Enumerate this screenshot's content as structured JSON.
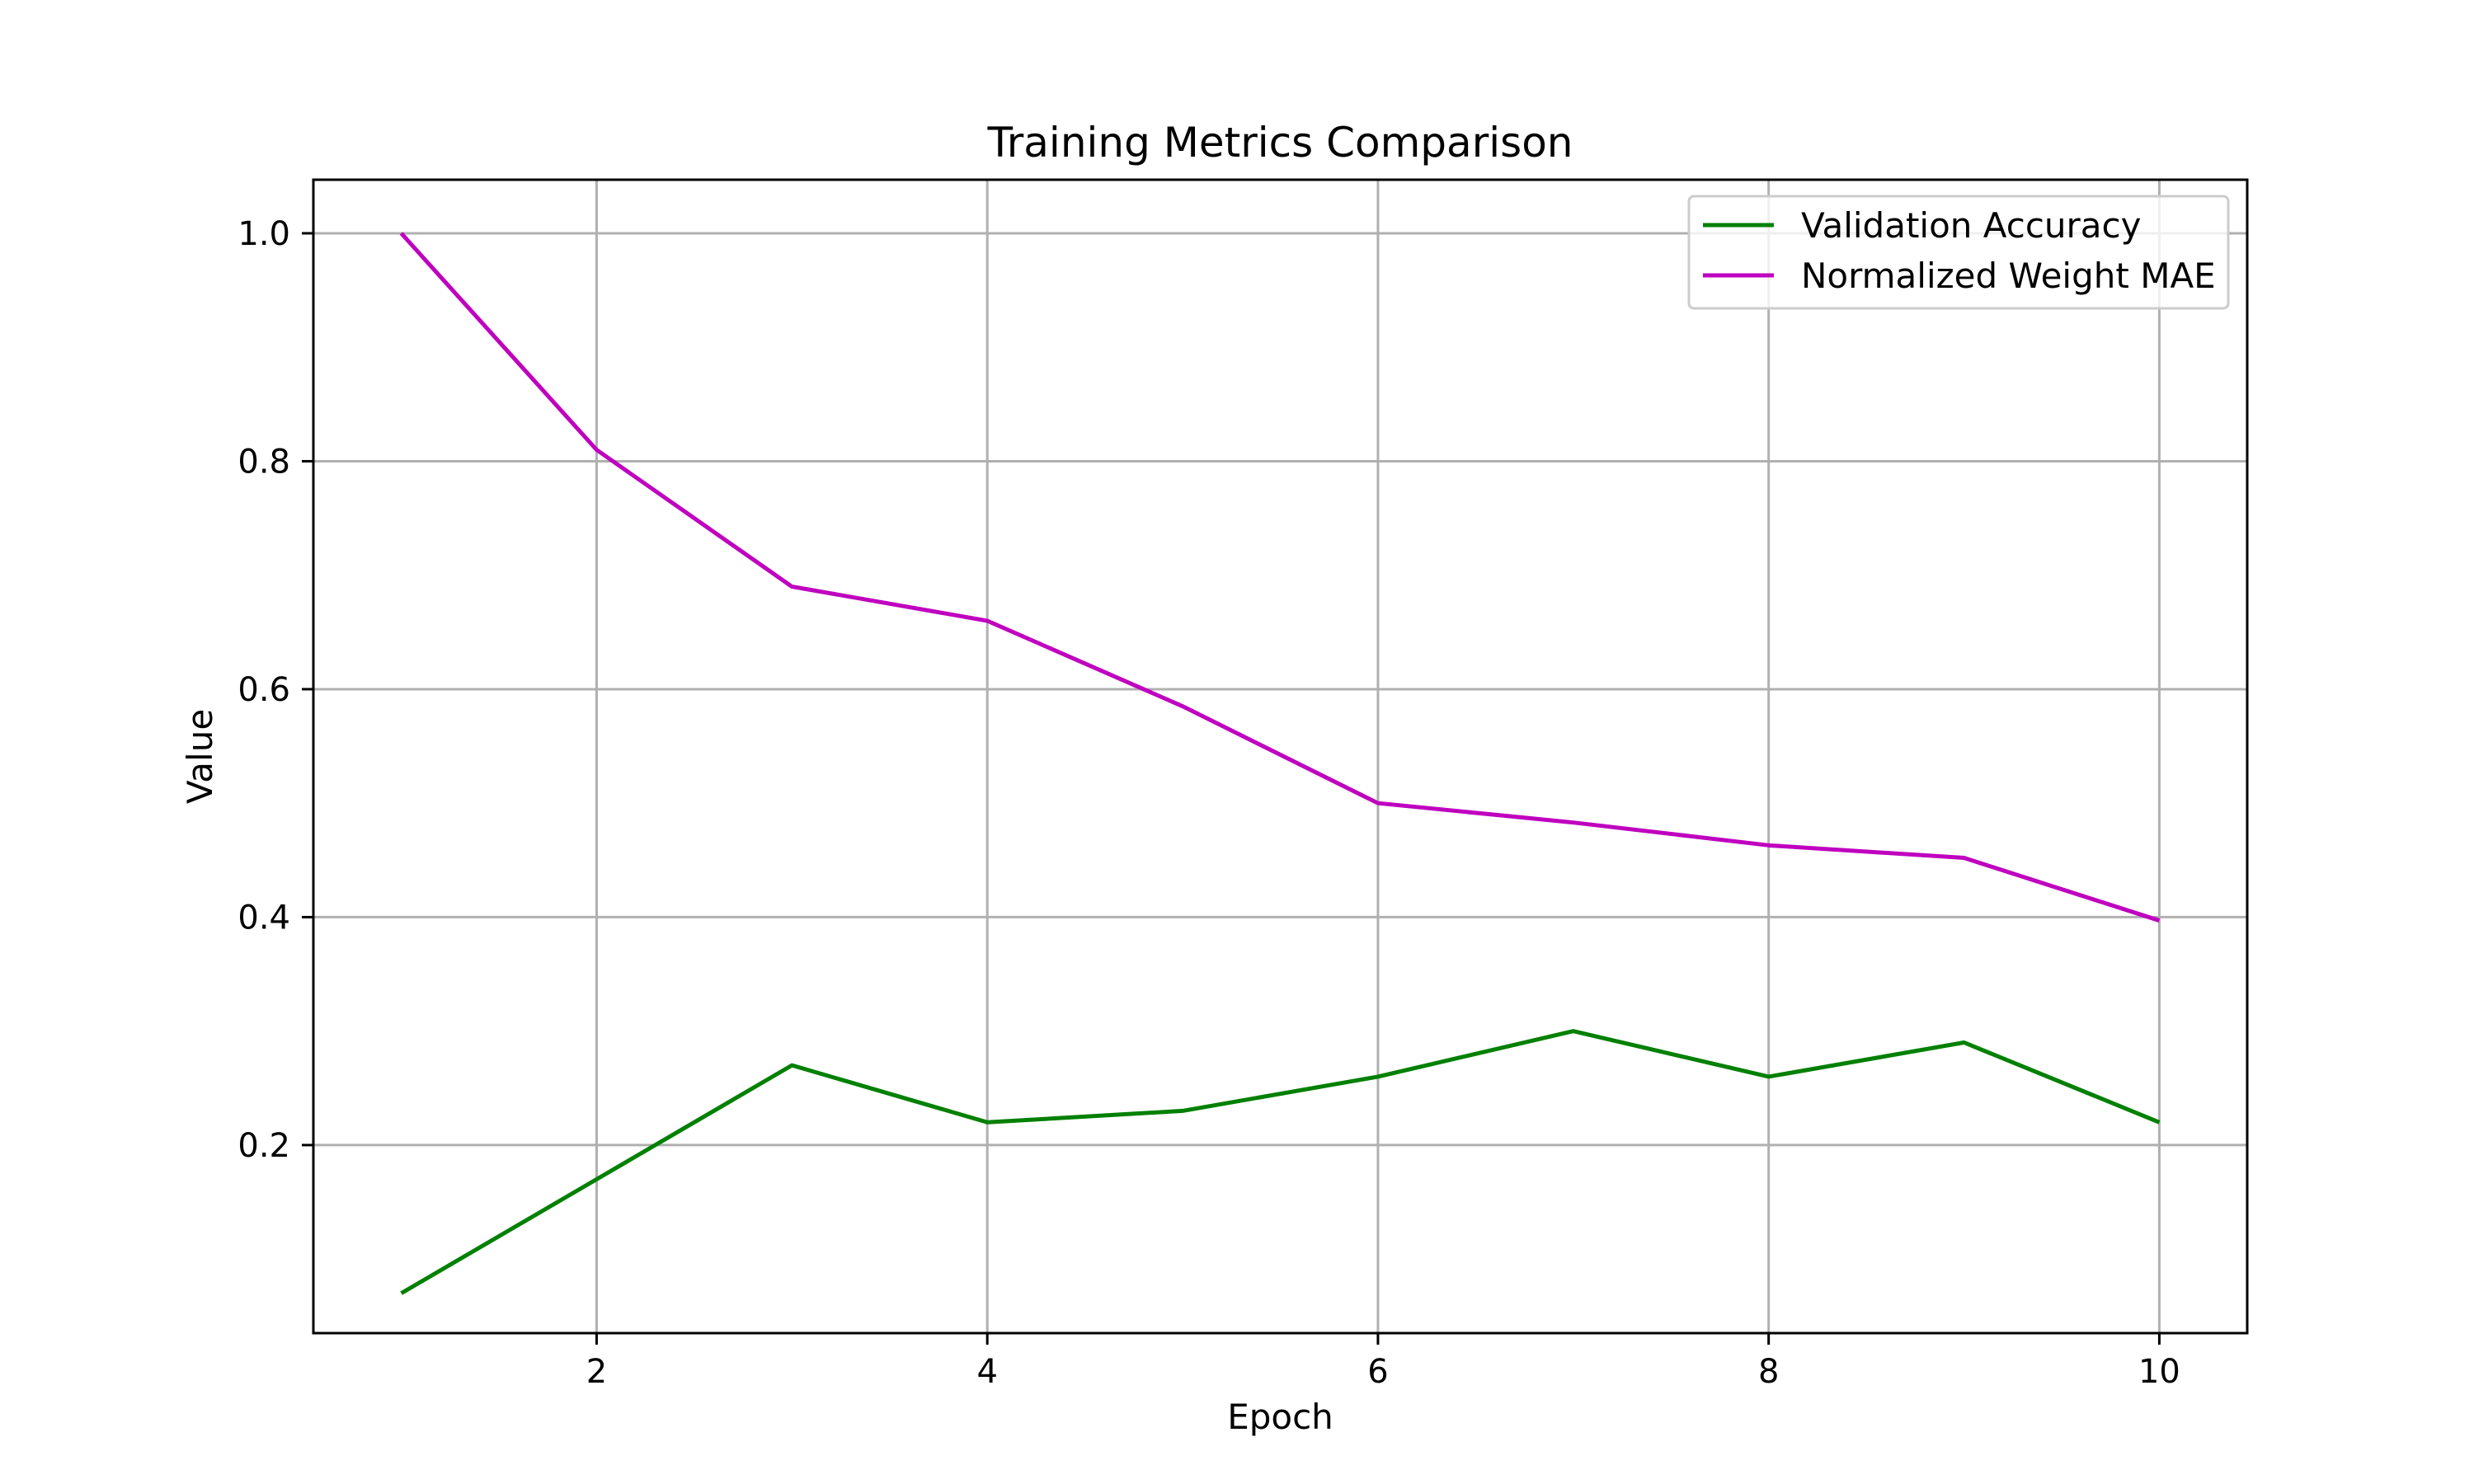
{
  "chart_data": {
    "type": "line",
    "title": "Training Metrics Comparison",
    "xlabel": "Epoch",
    "ylabel": "Value",
    "x": [
      1,
      2,
      3,
      4,
      5,
      6,
      7,
      8,
      9,
      10
    ],
    "xlim": [
      0.55,
      10.45
    ],
    "ylim": [
      0.035,
      1.047
    ],
    "xticks": [
      2,
      4,
      6,
      8,
      10
    ],
    "xtick_labels": [
      "2",
      "4",
      "6",
      "8",
      "10"
    ],
    "yticks": [
      0.2,
      0.4,
      0.6,
      0.8,
      1.0
    ],
    "ytick_labels": [
      "0.2",
      "0.4",
      "0.6",
      "0.8",
      "1.0"
    ],
    "grid": true,
    "legend_position": "top-right",
    "series": [
      {
        "name": "Validation Accuracy",
        "color": "#008000",
        "values": [
          0.07,
          0.17,
          0.27,
          0.22,
          0.23,
          0.26,
          0.3,
          0.26,
          0.29,
          0.22
        ]
      },
      {
        "name": "Normalized Weight MAE",
        "color": "#bf00bf",
        "values": [
          1.0,
          0.81,
          0.69,
          0.66,
          0.585,
          0.5,
          0.483,
          0.463,
          0.452,
          0.397
        ]
      }
    ]
  }
}
